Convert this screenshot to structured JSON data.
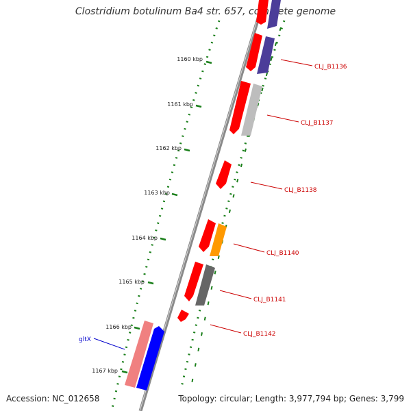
{
  "title": "Clostridium botulinum Ba4 str. 657, complete genome",
  "accession": "Accession: NC_012658",
  "topology": "Topology: circular; Length: 3,977,794 bp; Genes: 3,799",
  "ticks": [
    "1160 kbp",
    "1161 kbp",
    "1162 kbp",
    "1163 kbp",
    "1164 kbp",
    "1165 kbp",
    "1166 kbp",
    "1167 kbp"
  ],
  "gene_labels": {
    "gltX": "gltX",
    "b1136": "CLJ_B1136",
    "b1137": "CLJ_B1137",
    "b1138": "CLJ_B1138",
    "b1140": "CLJ_B1140",
    "b1141": "CLJ_B1141",
    "b1142": "CLJ_B1142"
  },
  "colors": {
    "backbone": "#8a8a8a",
    "ticks": "#1a7f1a",
    "gene_red": "#ff0000",
    "gene_pink": "#f08080",
    "gene_blue": "#0000ff",
    "gene_navy": "#4b3d99",
    "gene_gray": "#bdbdbd",
    "gene_darkgray": "#666666",
    "gene_orange": "#ff9900",
    "label_red": "#cc0000",
    "label_blue": "#0000cc"
  }
}
